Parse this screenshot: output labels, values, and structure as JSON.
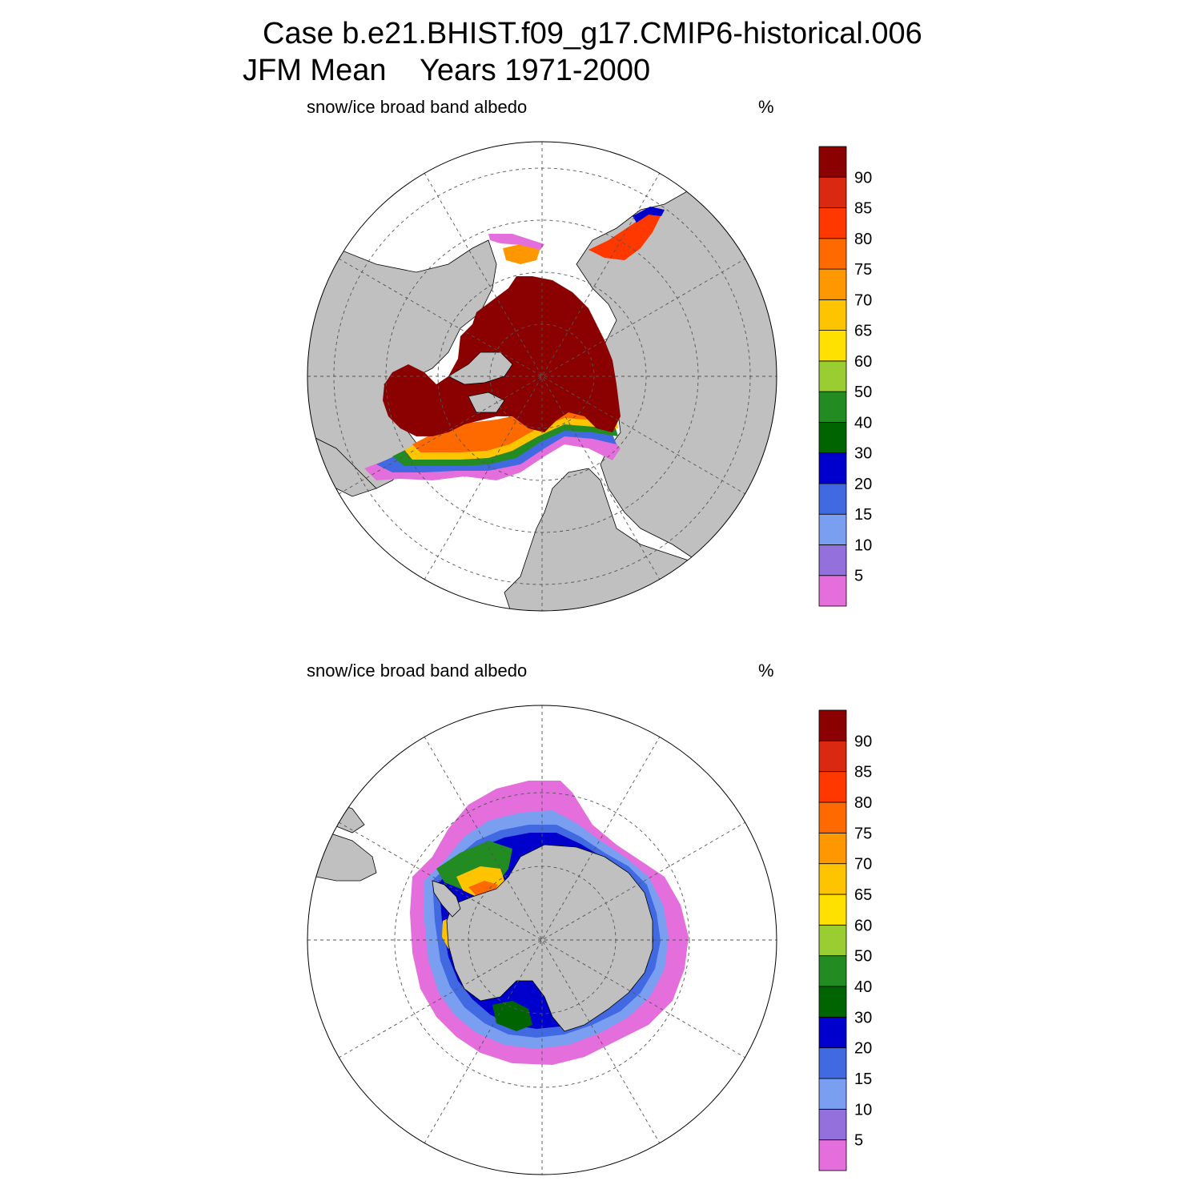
{
  "header": {
    "title_line1": "Case b.e21.BHIST.f09_g17.CMIP6-historical.006",
    "title_line2": "JFM Mean    Years 1971-2000"
  },
  "panels": [
    {
      "hemisphere": "north",
      "variable_label": "snow/ice broad band albedo",
      "units_label": "%"
    },
    {
      "hemisphere": "south",
      "variable_label": "snow/ice broad band albedo",
      "units_label": "%"
    }
  ],
  "colorbar": {
    "labels": [
      "5",
      "10",
      "15",
      "20",
      "30",
      "40",
      "50",
      "60",
      "65",
      "70",
      "75",
      "80",
      "85",
      "90"
    ],
    "colors": [
      "#e46edc",
      "#9370db",
      "#7b9ff0",
      "#4169e1",
      "#0000cd",
      "#006400",
      "#228b22",
      "#9acd32",
      "#ffe000",
      "#ffc400",
      "#ff9800",
      "#ff6a00",
      "#ff3800",
      "#db2810",
      "#8b0000"
    ]
  },
  "colors": {
    "land": "#c0c0c0",
    "ocean": "#ffffff",
    "ice_core": "#8b0000"
  }
}
